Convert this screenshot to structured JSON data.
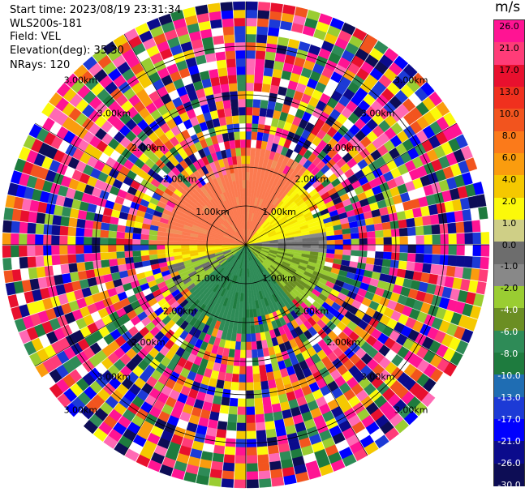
{
  "header": {
    "start_time": "Start time: 2023/08/19 23:31:34",
    "instrument": "WLS200s-181",
    "field": "Field: VEL",
    "elevation": "Elevation(deg): 35.30",
    "nrays": "NRays: 120"
  },
  "colorbar": {
    "unit": "m/s",
    "labels": [
      "26.0",
      "21.0",
      "17.0",
      "13.0",
      "10.0",
      "8.0",
      "6.0",
      "4.0",
      "2.0",
      "1.0",
      "0.0",
      "-1.0",
      "-2.0",
      "-4.0",
      "-6.0",
      "-8.0",
      "-10.0",
      "-13.0",
      "-17.0",
      "-21.0",
      "-26.0",
      "-30.0"
    ],
    "colors": [
      "#ff1493",
      "#ff3c78",
      "#e8102e",
      "#f0301e",
      "#f2541e",
      "#fb7a1a",
      "#fa9c0e",
      "#f5c800",
      "#fbf90a",
      "#cfcf86",
      "#6d6d6d",
      "#888888",
      "#9acd32",
      "#6b8e23",
      "#2e8b57",
      "#1e7b3e",
      "#1f6db3",
      "#1c3ad6",
      "#0000ff",
      "#0b0b8c",
      "#0d0d55"
    ]
  },
  "range_labels": {
    "r1": "1.00km",
    "r2": "2.00km",
    "r3": "3.00km"
  }
}
